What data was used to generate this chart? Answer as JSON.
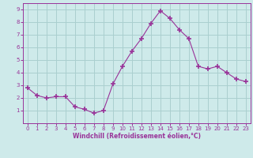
{
  "x": [
    0,
    1,
    2,
    3,
    4,
    5,
    6,
    7,
    8,
    9,
    10,
    11,
    12,
    13,
    14,
    15,
    16,
    17,
    18,
    19,
    20,
    21,
    22,
    23
  ],
  "y": [
    2.8,
    2.2,
    2.0,
    2.1,
    2.1,
    1.3,
    1.1,
    0.8,
    1.0,
    3.1,
    4.5,
    5.7,
    6.7,
    7.9,
    8.9,
    8.3,
    7.4,
    6.7,
    4.5,
    4.3,
    4.5,
    4.0,
    3.5,
    3.3
  ],
  "line_color": "#993399",
  "marker": "+",
  "marker_size": 4,
  "bg_color": "#ceeaea",
  "grid_color": "#aacfcf",
  "xlabel": "Windchill (Refroidissement éolien,°C)",
  "xlabel_color": "#993399",
  "tick_color": "#993399",
  "spine_color": "#993399",
  "xlim": [
    -0.5,
    23.5
  ],
  "ylim": [
    0,
    9.5
  ],
  "yticks": [
    1,
    2,
    3,
    4,
    5,
    6,
    7,
    8,
    9
  ],
  "xticks": [
    0,
    1,
    2,
    3,
    4,
    5,
    6,
    7,
    8,
    9,
    10,
    11,
    12,
    13,
    14,
    15,
    16,
    17,
    18,
    19,
    20,
    21,
    22,
    23
  ],
  "figsize": [
    3.2,
    2.0
  ],
  "dpi": 100
}
